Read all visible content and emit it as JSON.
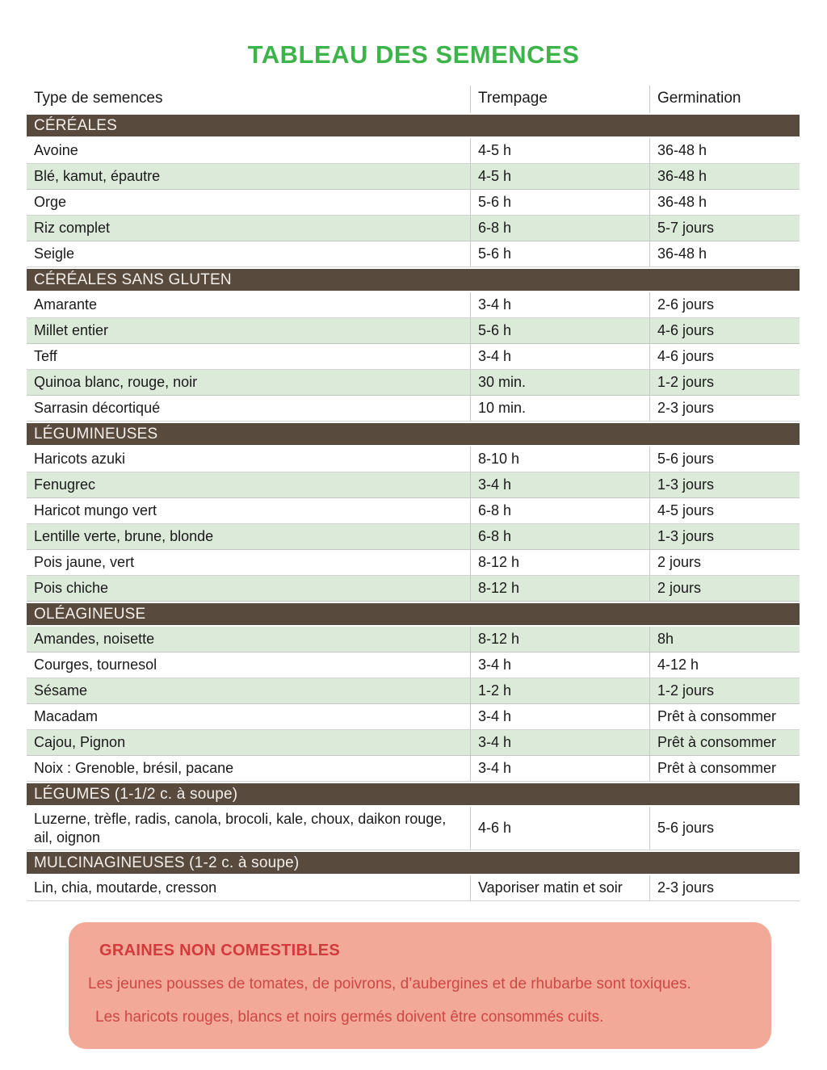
{
  "title": "TABLEAU DES SEMENCES",
  "columns": [
    "Type de semences",
    "Trempage",
    "Germination"
  ],
  "sections": [
    {
      "label": "CÉRÉALES",
      "rows": [
        {
          "type": "Avoine",
          "trempage": "4-5 h",
          "germination": "36-48 h",
          "shaded": false
        },
        {
          "type": "Blé, kamut, épautre",
          "trempage": "4-5 h",
          "germination": "36-48 h",
          "shaded": true
        },
        {
          "type": "Orge",
          "trempage": "5-6 h",
          "germination": "36-48 h",
          "shaded": false
        },
        {
          "type": "Riz complet",
          "trempage": "6-8 h",
          "germination": "5-7 jours",
          "shaded": true
        },
        {
          "type": "Seigle",
          "trempage": "5-6 h",
          "germination": "36-48 h",
          "shaded": false
        }
      ]
    },
    {
      "label": "CÉRÉALES SANS GLUTEN",
      "rows": [
        {
          "type": "Amarante",
          "trempage": "3-4 h",
          "germination": "2-6 jours",
          "shaded": false
        },
        {
          "type": "Millet entier",
          "trempage": "5-6 h",
          "germination": "4-6 jours",
          "shaded": true
        },
        {
          "type": "Teff",
          "trempage": "3-4 h",
          "germination": "4-6 jours",
          "shaded": false
        },
        {
          "type": "Quinoa blanc, rouge, noir",
          "trempage": "30 min.",
          "germination": "1-2 jours",
          "shaded": true
        },
        {
          "type": "Sarrasin décortiqué",
          "trempage": "10 min.",
          "germination": "2-3 jours",
          "shaded": false
        }
      ]
    },
    {
      "label": "LÉGUMINEUSES",
      "rows": [
        {
          "type": "Haricots azuki",
          "trempage": "8-10 h",
          "germination": "5-6 jours",
          "shaded": false
        },
        {
          "type": "Fenugrec",
          "trempage": "3-4 h",
          "germination": "1-3 jours",
          "shaded": true
        },
        {
          "type": "Haricot mungo vert",
          "trempage": "6-8 h",
          "germination": "4-5 jours",
          "shaded": false
        },
        {
          "type": "Lentille verte, brune, blonde",
          "trempage": "6-8 h",
          "germination": "1-3 jours",
          "shaded": true
        },
        {
          "type": "Pois jaune, vert",
          "trempage": "8-12 h",
          "germination": "2 jours",
          "shaded": false
        },
        {
          "type": "Pois chiche",
          "trempage": "8-12 h",
          "germination": "2 jours",
          "shaded": true
        }
      ]
    },
    {
      "label": "OLÉAGINEUSE",
      "rows": [
        {
          "type": "Amandes, noisette",
          "trempage": "8-12 h",
          "germination": "8h",
          "shaded": true
        },
        {
          "type": "Courges, tournesol",
          "trempage": "3-4 h",
          "germination": "4-12 h",
          "shaded": false
        },
        {
          "type": "Sésame",
          "trempage": "1-2 h",
          "germination": "1-2 jours",
          "shaded": true
        },
        {
          "type": "Macadam",
          "trempage": "3-4 h",
          "germination": "Prêt à consommer",
          "shaded": false
        },
        {
          "type": "Cajou, Pignon",
          "trempage": "3-4 h",
          "germination": "Prêt à consommer",
          "shaded": true
        },
        {
          "type": "Noix : Grenoble, brésil, pacane",
          "trempage": "3-4 h",
          "germination": "Prêt à consommer",
          "shaded": false
        }
      ]
    },
    {
      "label": "LÉGUMES (1-1/2 c. à soupe)",
      "rows": [
        {
          "type": "Luzerne, trèfle, radis, canola, brocoli, kale, choux, daikon rouge, ail, oignon",
          "trempage": "4-6 h",
          "germination": "5-6 jours",
          "shaded": false
        }
      ]
    },
    {
      "label": "MULCINAGINEUSES (1-2 c. à soupe)",
      "rows": [
        {
          "type": "Lin, chia, moutarde, cresson",
          "trempage": "Vaporiser matin et soir",
          "germination": "2-3 jours",
          "shaded": false
        }
      ]
    }
  ],
  "warning": {
    "title": "GRAINES NON COMESTIBLES",
    "lines": [
      "Les jeunes pousses de tomates, de poivrons, d’aubergines et de rhubarbe sont toxiques.",
      "Les haricots rouges, blancs et noirs germés doivent être consommés cuits."
    ]
  },
  "colors": {
    "title_green": "#3CB44A",
    "section_brown": "#594A3E",
    "row_green": "#DCEAD9",
    "warning_background": "#F2A997",
    "warning_red": "#D23A3C"
  }
}
